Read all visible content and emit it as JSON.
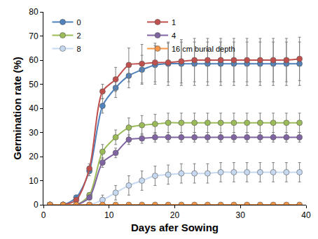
{
  "chart_data": {
    "type": "line",
    "x_label": "Days afer Sowing",
    "y_label": "Germination rate (%)",
    "x": [
      1,
      3,
      5,
      7,
      9,
      11,
      13,
      15,
      17,
      19,
      21,
      23,
      25,
      27,
      29,
      31,
      33,
      35,
      37,
      39
    ],
    "series": [
      {
        "name": "0",
        "color": "#4f81bd",
        "values": [
          0,
          0,
          3,
          14,
          41,
          48.5,
          53.5,
          56,
          58,
          58.5,
          58.5,
          58.5,
          58.5,
          58.5,
          58.5,
          58.5,
          58.5,
          58.5,
          58.5,
          58.5
        ],
        "errors": [
          0,
          0,
          1,
          2,
          3,
          4,
          5,
          6,
          8,
          9,
          9,
          9,
          9,
          9,
          9,
          9,
          9,
          9,
          9,
          9
        ]
      },
      {
        "name": "1",
        "color": "#c0504d",
        "values": [
          0,
          0,
          2,
          15,
          47,
          52,
          58,
          58.5,
          59,
          59,
          59.5,
          60,
          60,
          60,
          60,
          60,
          60,
          60,
          60,
          60.5
        ],
        "errors": [
          0,
          0,
          1,
          2,
          3,
          5,
          7,
          8,
          8,
          8,
          9,
          9,
          9,
          9,
          9,
          9,
          9,
          9,
          9,
          9
        ]
      },
      {
        "name": "2",
        "color": "#9bbb59",
        "values": [
          0,
          0,
          0,
          4,
          22,
          28,
          32,
          33,
          33.5,
          34,
          34,
          34,
          34,
          34,
          34,
          34,
          34,
          34,
          34,
          34
        ],
        "errors": [
          0,
          0,
          0,
          1,
          3,
          3,
          4,
          4,
          4,
          4,
          4,
          4,
          4,
          4,
          4,
          4,
          4,
          4,
          4,
          4
        ]
      },
      {
        "name": "4",
        "color": "#8064a2",
        "values": [
          0,
          0,
          0,
          3,
          17.5,
          21.5,
          27,
          27.5,
          28,
          28,
          28,
          28,
          28,
          28,
          28,
          28,
          28,
          28,
          28,
          28
        ],
        "errors": [
          0,
          0,
          0,
          1,
          2,
          2,
          2,
          2,
          2,
          2,
          2,
          2,
          2,
          2,
          2,
          2,
          2,
          2,
          2,
          2
        ]
      },
      {
        "name": "8",
        "color": "#c6d9f1",
        "values": [
          0,
          0,
          0,
          0,
          2,
          5,
          8,
          10,
          12,
          12.5,
          13,
          13,
          13,
          13.5,
          13.5,
          13.5,
          13.5,
          13.5,
          13.5,
          13.5
        ],
        "errors": [
          0,
          0,
          0,
          0,
          2,
          3,
          4,
          4,
          4,
          4,
          4,
          4,
          4,
          4,
          4,
          4,
          4,
          4,
          4,
          4
        ]
      },
      {
        "name": "16 cm burial depth",
        "color": "#f79646",
        "values": [
          0,
          0,
          0,
          0,
          0,
          0,
          0,
          0,
          0,
          0,
          0,
          0,
          0,
          0,
          0,
          0,
          0,
          0,
          0,
          0
        ],
        "errors": [
          0,
          0,
          0,
          0,
          0,
          0,
          0,
          0,
          0,
          0,
          0,
          0,
          0,
          0,
          0,
          0,
          0,
          0,
          0,
          0
        ]
      }
    ],
    "xlim": [
      0,
      40
    ],
    "xticks": [
      0,
      10,
      20,
      30,
      40
    ],
    "ylim": [
      0,
      80
    ],
    "yticks": [
      0,
      10,
      20,
      30,
      40,
      50,
      60,
      70,
      80
    ],
    "grid": false,
    "legend": "top",
    "marker": "circle",
    "line_style": "solid"
  }
}
